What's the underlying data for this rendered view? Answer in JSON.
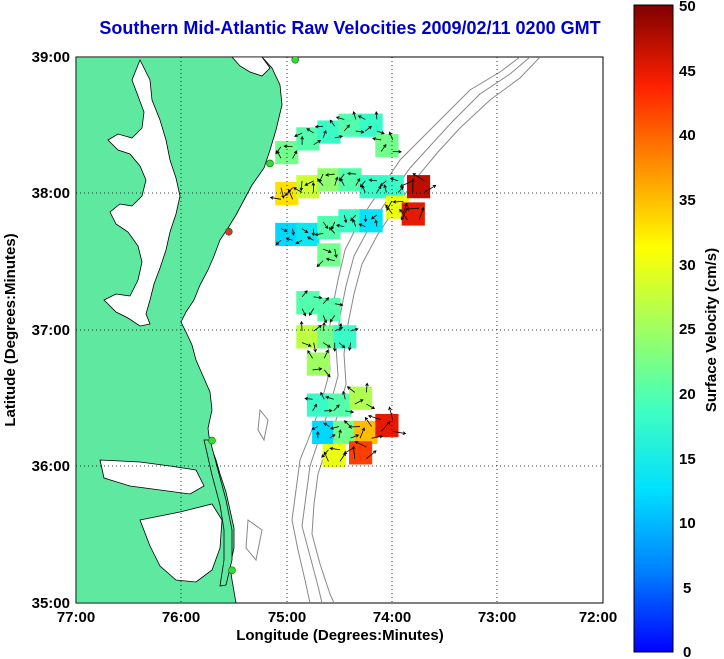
{
  "title": "Southern Mid-Atlantic Raw Velocities 2009/02/11 0200 GMT",
  "map": {
    "xlabel": "Longitude (Degrees:Minutes)",
    "ylabel": "Latitude (Degrees:Minutes)",
    "x_ticks": [
      "77:00",
      "76:00",
      "75:00",
      "74:00",
      "73:00",
      "72:00"
    ],
    "y_ticks": [
      "39:00",
      "38:00",
      "37:00",
      "36:00",
      "35:00"
    ],
    "lon_range": [
      -77,
      -72
    ],
    "lat_range": [
      35,
      39
    ],
    "land_color": "#5ee8a0",
    "ocean_color": "#ffffff",
    "contour_color": "#888888",
    "grid": "dotted"
  },
  "colorbar": {
    "label": "Surface Velocity (cm/s)",
    "ticks": [
      "50",
      "45",
      "40",
      "35",
      "30",
      "25",
      "20",
      "15",
      "10",
      "5",
      "0"
    ],
    "range": [
      0,
      50
    ],
    "colormap": "jet"
  },
  "stations": [
    {
      "color": "#33dd33",
      "lon": -74.92,
      "lat": 38.98
    },
    {
      "color": "#33dd33",
      "lon": -75.16,
      "lat": 38.22
    },
    {
      "color": "#dd3333",
      "lon": -75.55,
      "lat": 37.72
    },
    {
      "color": "#33dd33",
      "lon": -75.71,
      "lat": 36.19
    },
    {
      "color": "#33dd33",
      "lon": -75.52,
      "lat": 35.24
    }
  ],
  "chart_data": {
    "type": "heatmap",
    "description_units": "cm/s",
    "regions": [
      {
        "name_hint": "north",
        "cells": [
          {
            "lon": -75.0,
            "lat": 38.3,
            "v": 22
          },
          {
            "lon": -74.8,
            "lat": 38.4,
            "v": 20
          },
          {
            "lon": -74.6,
            "lat": 38.45,
            "v": 18
          },
          {
            "lon": -74.4,
            "lat": 38.5,
            "v": 20
          },
          {
            "lon": -74.2,
            "lat": 38.5,
            "v": 18
          },
          {
            "lon": -74.05,
            "lat": 38.35,
            "v": 22
          },
          {
            "lon": -75.0,
            "lat": 38.0,
            "v": 33
          },
          {
            "lon": -74.8,
            "lat": 38.05,
            "v": 28
          },
          {
            "lon": -74.6,
            "lat": 38.1,
            "v": 24
          },
          {
            "lon": -74.4,
            "lat": 38.1,
            "v": 20
          },
          {
            "lon": -74.2,
            "lat": 38.05,
            "v": 18
          },
          {
            "lon": -74.0,
            "lat": 38.05,
            "v": 18
          },
          {
            "lon": -75.0,
            "lat": 37.7,
            "v": 12
          },
          {
            "lon": -74.8,
            "lat": 37.7,
            "v": 14
          },
          {
            "lon": -74.6,
            "lat": 37.75,
            "v": 20
          },
          {
            "lon": -74.4,
            "lat": 37.8,
            "v": 18
          },
          {
            "lon": -74.2,
            "lat": 37.8,
            "v": 13
          },
          {
            "lon": -73.95,
            "lat": 37.9,
            "v": 30
          },
          {
            "lon": -73.8,
            "lat": 37.85,
            "v": 45
          },
          {
            "lon": -73.75,
            "lat": 38.05,
            "v": 47
          },
          {
            "lon": -74.6,
            "lat": 37.55,
            "v": 22
          }
        ]
      },
      {
        "name_hint": "middle",
        "cells": [
          {
            "lon": -74.8,
            "lat": 37.2,
            "v": 20
          },
          {
            "lon": -74.6,
            "lat": 37.15,
            "v": 20
          },
          {
            "lon": -74.8,
            "lat": 36.95,
            "v": 27
          },
          {
            "lon": -74.6,
            "lat": 36.95,
            "v": 22
          },
          {
            "lon": -74.45,
            "lat": 36.95,
            "v": 18
          },
          {
            "lon": -74.7,
            "lat": 36.75,
            "v": 25
          }
        ]
      },
      {
        "name_hint": "south",
        "cells": [
          {
            "lon": -74.7,
            "lat": 36.45,
            "v": 18
          },
          {
            "lon": -74.5,
            "lat": 36.45,
            "v": 20
          },
          {
            "lon": -74.3,
            "lat": 36.5,
            "v": 26
          },
          {
            "lon": -74.65,
            "lat": 36.25,
            "v": 12
          },
          {
            "lon": -74.45,
            "lat": 36.25,
            "v": 22
          },
          {
            "lon": -74.25,
            "lat": 36.25,
            "v": 35
          },
          {
            "lon": -74.05,
            "lat": 36.3,
            "v": 45
          },
          {
            "lon": -74.55,
            "lat": 36.08,
            "v": 30
          },
          {
            "lon": -74.3,
            "lat": 36.1,
            "v": 42
          }
        ]
      }
    ]
  }
}
